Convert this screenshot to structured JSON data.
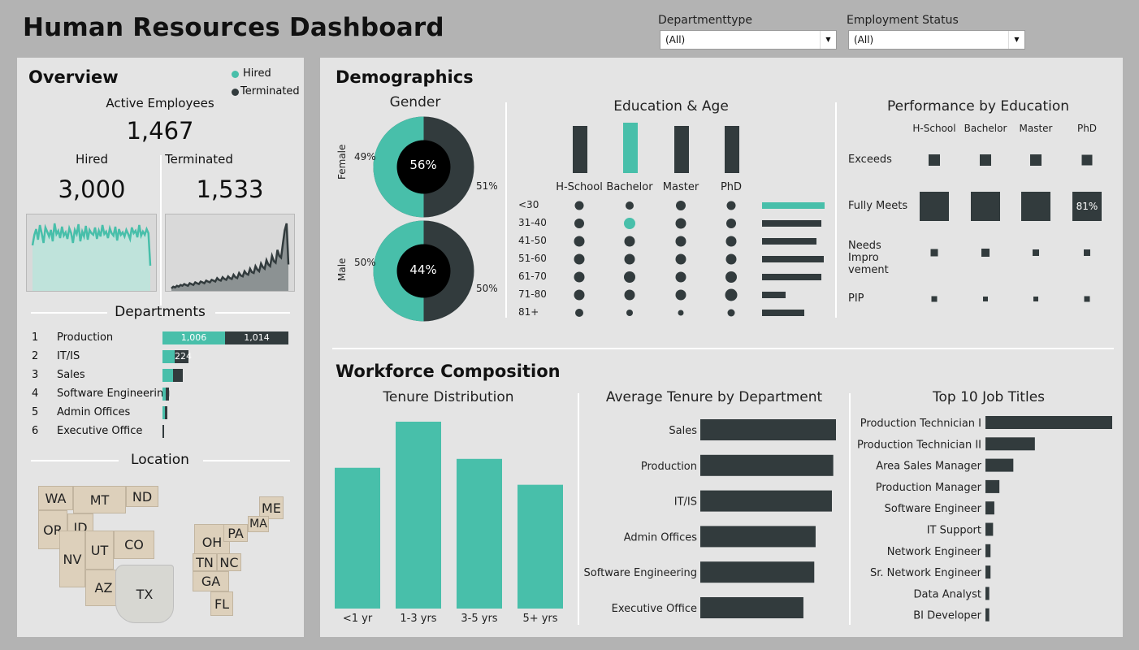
{
  "header": {
    "title": "Human Resources Dashboard",
    "filters": [
      {
        "label": "Departmenttype",
        "value": "(All)"
      },
      {
        "label": "Employment Status",
        "value": "(All)"
      }
    ]
  },
  "overview": {
    "title": "Overview",
    "legend": [
      "Hired",
      "Terminated"
    ],
    "active_label": "Active Employees",
    "active_value": "1,467",
    "hired_label": "Hired",
    "hired_value": "3,000",
    "terminated_label": "Terminated",
    "terminated_value": "1,533"
  },
  "departments": {
    "title": "Departments",
    "rows": [
      {
        "rank": "1",
        "name": "Production",
        "hired": 1006,
        "terminated": 1014,
        "hired_label": "1,006",
        "terminated_label": "1,014"
      },
      {
        "rank": "2",
        "name": "IT/IS",
        "hired": 200,
        "terminated": 224,
        "hired_label": "",
        "terminated_label": "224"
      },
      {
        "rank": "3",
        "name": "Sales",
        "hired": 160,
        "terminated": 140,
        "hired_label": "",
        "terminated_label": ""
      },
      {
        "rank": "4",
        "name": "Software Engineering",
        "hired": 50,
        "terminated": 50,
        "hired_label": "",
        "terminated_label": ""
      },
      {
        "rank": "5",
        "name": "Admin Offices",
        "hired": 40,
        "terminated": 40,
        "hired_label": "",
        "terminated_label": ""
      },
      {
        "rank": "6",
        "name": "Executive Office",
        "hired": 0,
        "terminated": 15,
        "hired_label": "",
        "terminated_label": ""
      }
    ]
  },
  "location": {
    "title": "Location",
    "states": [
      "WA",
      "MT",
      "ND",
      "OR",
      "ID",
      "NV",
      "UT",
      "CO",
      "AZ",
      "TX",
      "OH",
      "PA",
      "ME",
      "MA",
      "TN",
      "NC",
      "GA",
      "FL"
    ]
  },
  "demographics": {
    "title": "Demographics",
    "gender": {
      "title": "Gender",
      "female": {
        "label": "Female",
        "left_pct": "49%",
        "center_pct": "56%",
        "right_pct": "51%"
      },
      "male": {
        "label": "Male",
        "left_pct": "50%",
        "center_pct": "44%",
        "right_pct": "50%"
      }
    },
    "education_age": {
      "title": "Education & Age",
      "education": [
        "H-School",
        "Bachelor",
        "Master",
        "PhD"
      ],
      "age_groups": [
        "<30",
        "31-40",
        "41-50",
        "51-60",
        "61-70",
        "71-80",
        "81+"
      ]
    },
    "performance": {
      "title": "Performance by Education",
      "columns": [
        "H-School",
        "Bachelor",
        "Master",
        "PhD"
      ],
      "rows": [
        "Exceeds",
        "Fully Meets",
        "Needs Impro vement",
        "PIP"
      ],
      "highlight_value": "81%"
    }
  },
  "workforce": {
    "title": "Workforce Composition",
    "tenure_title": "Tenure Distribution",
    "avg_tenure_title": "Average Tenure by Department",
    "jobs_title": "Top 10 Job Titles"
  },
  "chart_data": [
    {
      "type": "bar",
      "title": "Tenure Distribution",
      "categories": [
        "<1 yr",
        "1-3 yrs",
        "3-5 yrs",
        "5+ yrs"
      ],
      "values": [
        174,
        231,
        185,
        153
      ],
      "color": "#48bfaa"
    },
    {
      "type": "bar",
      "title": "Average Tenure by Department",
      "orientation": "horizontal",
      "categories": [
        "Sales",
        "Production",
        "IT/IS",
        "Admin Offices",
        "Software Engineering",
        "Executive Office"
      ],
      "values": [
        100,
        98,
        97,
        85,
        84,
        76
      ],
      "color": "#323b3d"
    },
    {
      "type": "bar",
      "title": "Top 10 Job Titles",
      "orientation": "horizontal",
      "categories": [
        "Production Technician I",
        "Production Technician II",
        "Area Sales Manager",
        "Production Manager",
        "Software Engineer",
        "IT Support",
        "Network Engineer",
        "Sr. Network Engineer",
        "Data Analyst",
        "BI Developer"
      ],
      "values": [
        100,
        39,
        22,
        11,
        7,
        6,
        4,
        4,
        3,
        3
      ],
      "color": "#323b3d"
    },
    {
      "type": "bar",
      "title": "Education",
      "categories": [
        "H-School",
        "Bachelor",
        "Master",
        "PhD"
      ],
      "values": [
        58,
        62,
        58,
        58
      ],
      "highlight": "Bachelor"
    },
    {
      "type": "bar",
      "title": "Age",
      "orientation": "horizontal",
      "categories": [
        "<30",
        "31-40",
        "41-50",
        "51-60",
        "61-70",
        "71-80",
        "81+"
      ],
      "values": [
        77,
        73,
        67,
        76,
        73,
        29,
        52
      ],
      "highlight": "<30"
    },
    {
      "type": "area",
      "title": "Hired",
      "series": [
        {
          "values": [
            55,
            68,
            75,
            62,
            80,
            70,
            58,
            77,
            72,
            66,
            74,
            60,
            82,
            69,
            73,
            64,
            78,
            67,
            71,
            63,
            76,
            70,
            58,
            74,
            69,
            81,
            60,
            72,
            66,
            79,
            62,
            74,
            70,
            68,
            77,
            63,
            73,
            66,
            80,
            69,
            72,
            64,
            76,
            70,
            67,
            78,
            61,
            75,
            68,
            71,
            66,
            74,
            69,
            63,
            77,
            70,
            73,
            65,
            80,
            67,
            72,
            68,
            75,
            70,
            30
          ]
        }
      ],
      "color": "#48bfaa"
    },
    {
      "type": "area",
      "title": "Terminated",
      "series": [
        {
          "values": [
            2,
            4,
            3,
            5,
            4,
            6,
            5,
            7,
            6,
            5,
            8,
            7,
            6,
            9,
            8,
            7,
            10,
            9,
            8,
            11,
            10,
            9,
            12,
            11,
            10,
            14,
            12,
            11,
            15,
            13,
            12,
            16,
            14,
            13,
            18,
            15,
            14,
            20,
            17,
            16,
            22,
            19,
            18,
            25,
            21,
            20,
            28,
            24,
            22,
            31,
            27,
            25,
            35,
            30,
            28,
            40,
            34,
            32,
            47,
            40,
            38,
            55,
            70,
            78,
            30
          ]
        }
      ],
      "color": "#323b3d"
    }
  ]
}
